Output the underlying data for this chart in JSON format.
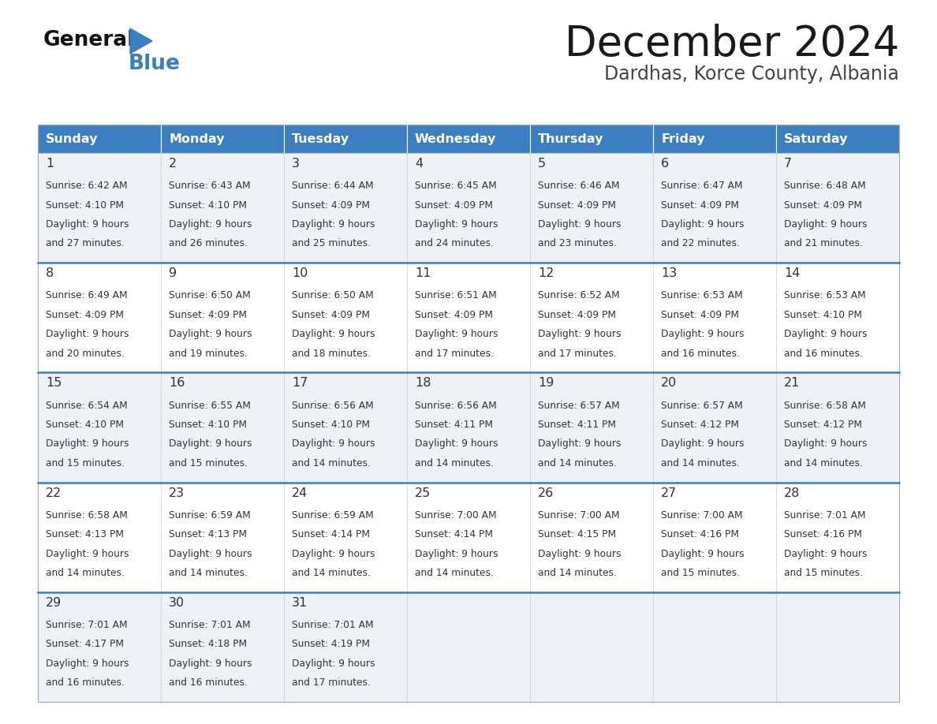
{
  "title": "December 2024",
  "subtitle": "Dardhas, Korce County, Albania",
  "header_color": "#3A7FC1",
  "header_text_color": "#FFFFFF",
  "background_color": "#FFFFFF",
  "row_bg_odd": "#EEF2F7",
  "row_bg_even": "#FFFFFF",
  "text_color": "#333333",
  "separator_color": "#3A7FC1",
  "days_of_week": [
    "Sunday",
    "Monday",
    "Tuesday",
    "Wednesday",
    "Thursday",
    "Friday",
    "Saturday"
  ],
  "calendar_data": [
    [
      {
        "day": 1,
        "sunrise": "6:42 AM",
        "sunset": "4:10 PM",
        "daylight_h": "9 hours",
        "daylight_m": "27 minutes"
      },
      {
        "day": 2,
        "sunrise": "6:43 AM",
        "sunset": "4:10 PM",
        "daylight_h": "9 hours",
        "daylight_m": "26 minutes"
      },
      {
        "day": 3,
        "sunrise": "6:44 AM",
        "sunset": "4:09 PM",
        "daylight_h": "9 hours",
        "daylight_m": "25 minutes"
      },
      {
        "day": 4,
        "sunrise": "6:45 AM",
        "sunset": "4:09 PM",
        "daylight_h": "9 hours",
        "daylight_m": "24 minutes"
      },
      {
        "day": 5,
        "sunrise": "6:46 AM",
        "sunset": "4:09 PM",
        "daylight_h": "9 hours",
        "daylight_m": "23 minutes"
      },
      {
        "day": 6,
        "sunrise": "6:47 AM",
        "sunset": "4:09 PM",
        "daylight_h": "9 hours",
        "daylight_m": "22 minutes"
      },
      {
        "day": 7,
        "sunrise": "6:48 AM",
        "sunset": "4:09 PM",
        "daylight_h": "9 hours",
        "daylight_m": "21 minutes"
      }
    ],
    [
      {
        "day": 8,
        "sunrise": "6:49 AM",
        "sunset": "4:09 PM",
        "daylight_h": "9 hours",
        "daylight_m": "20 minutes"
      },
      {
        "day": 9,
        "sunrise": "6:50 AM",
        "sunset": "4:09 PM",
        "daylight_h": "9 hours",
        "daylight_m": "19 minutes"
      },
      {
        "day": 10,
        "sunrise": "6:50 AM",
        "sunset": "4:09 PM",
        "daylight_h": "9 hours",
        "daylight_m": "18 minutes"
      },
      {
        "day": 11,
        "sunrise": "6:51 AM",
        "sunset": "4:09 PM",
        "daylight_h": "9 hours",
        "daylight_m": "17 minutes"
      },
      {
        "day": 12,
        "sunrise": "6:52 AM",
        "sunset": "4:09 PM",
        "daylight_h": "9 hours",
        "daylight_m": "17 minutes"
      },
      {
        "day": 13,
        "sunrise": "6:53 AM",
        "sunset": "4:09 PM",
        "daylight_h": "9 hours",
        "daylight_m": "16 minutes"
      },
      {
        "day": 14,
        "sunrise": "6:53 AM",
        "sunset": "4:10 PM",
        "daylight_h": "9 hours",
        "daylight_m": "16 minutes"
      }
    ],
    [
      {
        "day": 15,
        "sunrise": "6:54 AM",
        "sunset": "4:10 PM",
        "daylight_h": "9 hours",
        "daylight_m": "15 minutes"
      },
      {
        "day": 16,
        "sunrise": "6:55 AM",
        "sunset": "4:10 PM",
        "daylight_h": "9 hours",
        "daylight_m": "15 minutes"
      },
      {
        "day": 17,
        "sunrise": "6:56 AM",
        "sunset": "4:10 PM",
        "daylight_h": "9 hours",
        "daylight_m": "14 minutes"
      },
      {
        "day": 18,
        "sunrise": "6:56 AM",
        "sunset": "4:11 PM",
        "daylight_h": "9 hours",
        "daylight_m": "14 minutes"
      },
      {
        "day": 19,
        "sunrise": "6:57 AM",
        "sunset": "4:11 PM",
        "daylight_h": "9 hours",
        "daylight_m": "14 minutes"
      },
      {
        "day": 20,
        "sunrise": "6:57 AM",
        "sunset": "4:12 PM",
        "daylight_h": "9 hours",
        "daylight_m": "14 minutes"
      },
      {
        "day": 21,
        "sunrise": "6:58 AM",
        "sunset": "4:12 PM",
        "daylight_h": "9 hours",
        "daylight_m": "14 minutes"
      }
    ],
    [
      {
        "day": 22,
        "sunrise": "6:58 AM",
        "sunset": "4:13 PM",
        "daylight_h": "9 hours",
        "daylight_m": "14 minutes"
      },
      {
        "day": 23,
        "sunrise": "6:59 AM",
        "sunset": "4:13 PM",
        "daylight_h": "9 hours",
        "daylight_m": "14 minutes"
      },
      {
        "day": 24,
        "sunrise": "6:59 AM",
        "sunset": "4:14 PM",
        "daylight_h": "9 hours",
        "daylight_m": "14 minutes"
      },
      {
        "day": 25,
        "sunrise": "7:00 AM",
        "sunset": "4:14 PM",
        "daylight_h": "9 hours",
        "daylight_m": "14 minutes"
      },
      {
        "day": 26,
        "sunrise": "7:00 AM",
        "sunset": "4:15 PM",
        "daylight_h": "9 hours",
        "daylight_m": "14 minutes"
      },
      {
        "day": 27,
        "sunrise": "7:00 AM",
        "sunset": "4:16 PM",
        "daylight_h": "9 hours",
        "daylight_m": "15 minutes"
      },
      {
        "day": 28,
        "sunrise": "7:01 AM",
        "sunset": "4:16 PM",
        "daylight_h": "9 hours",
        "daylight_m": "15 minutes"
      }
    ],
    [
      {
        "day": 29,
        "sunrise": "7:01 AM",
        "sunset": "4:17 PM",
        "daylight_h": "9 hours",
        "daylight_m": "16 minutes"
      },
      {
        "day": 30,
        "sunrise": "7:01 AM",
        "sunset": "4:18 PM",
        "daylight_h": "9 hours",
        "daylight_m": "16 minutes"
      },
      {
        "day": 31,
        "sunrise": "7:01 AM",
        "sunset": "4:19 PM",
        "daylight_h": "9 hours",
        "daylight_m": "17 minutes"
      },
      null,
      null,
      null,
      null
    ]
  ]
}
